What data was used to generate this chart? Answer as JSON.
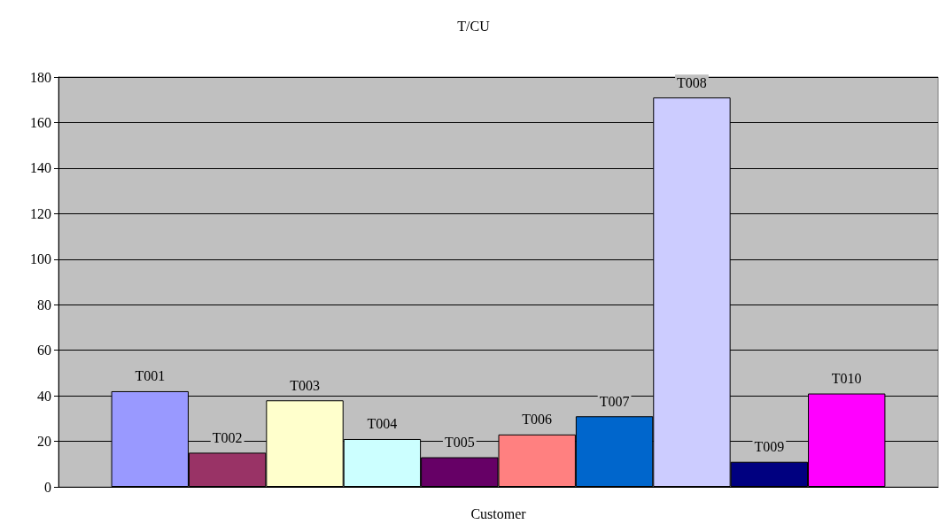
{
  "chart_data": {
    "type": "bar",
    "title": "T/CU",
    "xlabel": "Customer",
    "categories": [
      null
    ],
    "series": [
      {
        "name": "T001",
        "color": "#9999ff",
        "values": [
          42
        ]
      },
      {
        "name": "T002",
        "color": "#993366",
        "values": [
          15
        ]
      },
      {
        "name": "T003",
        "color": "#ffffcc",
        "values": [
          38
        ]
      },
      {
        "name": "T004",
        "color": "#ccffff",
        "values": [
          21
        ]
      },
      {
        "name": "T005",
        "color": "#660066",
        "values": [
          13
        ]
      },
      {
        "name": "T006",
        "color": "#ff8080",
        "values": [
          23
        ]
      },
      {
        "name": "T007",
        "color": "#0066cc",
        "values": [
          31
        ]
      },
      {
        "name": "T008",
        "color": "#ccccff",
        "values": [
          171
        ]
      },
      {
        "name": "T009",
        "color": "#000080",
        "values": [
          11
        ]
      },
      {
        "name": "T010",
        "color": "#ff00ff",
        "values": [
          41
        ]
      }
    ],
    "ylim": [
      0,
      180
    ],
    "yticks": [
      0,
      20,
      40,
      60,
      80,
      100,
      120,
      140,
      160,
      180
    ],
    "grid": "y",
    "legend": false
  }
}
